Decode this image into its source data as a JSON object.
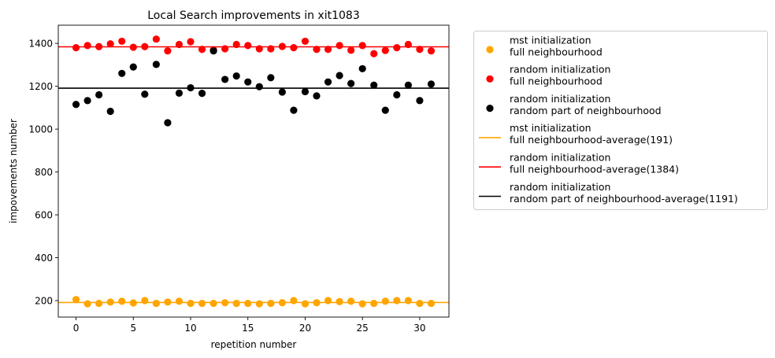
{
  "chart_data": {
    "type": "scatter",
    "title": "Local Search improvements in xit1083",
    "xlabel": "repetition number",
    "ylabel": "impovements number",
    "xlim": [
      -1.55,
      32.55
    ],
    "ylim": [
      123,
      1485
    ],
    "xticks": [
      0,
      5,
      10,
      15,
      20,
      25,
      30
    ],
    "yticks": [
      200,
      400,
      600,
      800,
      1000,
      1200,
      1400
    ],
    "legend_position": "outside-right",
    "x": [
      0,
      1,
      2,
      3,
      4,
      5,
      6,
      7,
      8,
      9,
      10,
      11,
      12,
      13,
      14,
      15,
      16,
      17,
      18,
      19,
      20,
      21,
      22,
      23,
      24,
      25,
      26,
      27,
      28,
      29,
      30,
      31
    ],
    "series": [
      {
        "name": "mst initialization\nfull neighbourhood",
        "color": "#ffa500",
        "values": [
          205,
          185,
          187,
          193,
          197,
          189,
          200,
          187,
          193,
          197,
          187,
          187,
          187,
          190,
          187,
          187,
          185,
          187,
          190,
          200,
          185,
          190,
          200,
          195,
          197,
          185,
          187,
          197,
          200,
          200,
          187,
          187
        ]
      },
      {
        "name": "random initialization\nfull neighbourhood",
        "color": "#ff0000",
        "values": [
          1380,
          1390,
          1385,
          1398,
          1410,
          1382,
          1385,
          1420,
          1365,
          1395,
          1408,
          1372,
          1370,
          1375,
          1395,
          1390,
          1375,
          1375,
          1386,
          1380,
          1410,
          1372,
          1372,
          1390,
          1368,
          1390,
          1352,
          1367,
          1380,
          1395,
          1372,
          1365
        ]
      },
      {
        "name": "random initialization\nrandom part of neighbourhood",
        "color": "#000000",
        "values": [
          1115,
          1133,
          1160,
          1083,
          1260,
          1290,
          1163,
          1302,
          1030,
          1168,
          1193,
          1167,
          1365,
          1232,
          1248,
          1220,
          1198,
          1240,
          1173,
          1088,
          1175,
          1155,
          1220,
          1250,
          1213,
          1282,
          1205,
          1088,
          1160,
          1205,
          1133,
          1210
        ]
      }
    ],
    "hlines": [
      {
        "name": "mst initialization\nfull neighbourhood-average(191)",
        "y": 191,
        "color": "#ffa500"
      },
      {
        "name": "random initialization\nfull neighbourhood-average(1384)",
        "y": 1384,
        "color": "#ff0000"
      },
      {
        "name": "random initialization\nrandom part of neighbourhood-average(1191)",
        "y": 1191,
        "color": "#000000"
      }
    ]
  }
}
